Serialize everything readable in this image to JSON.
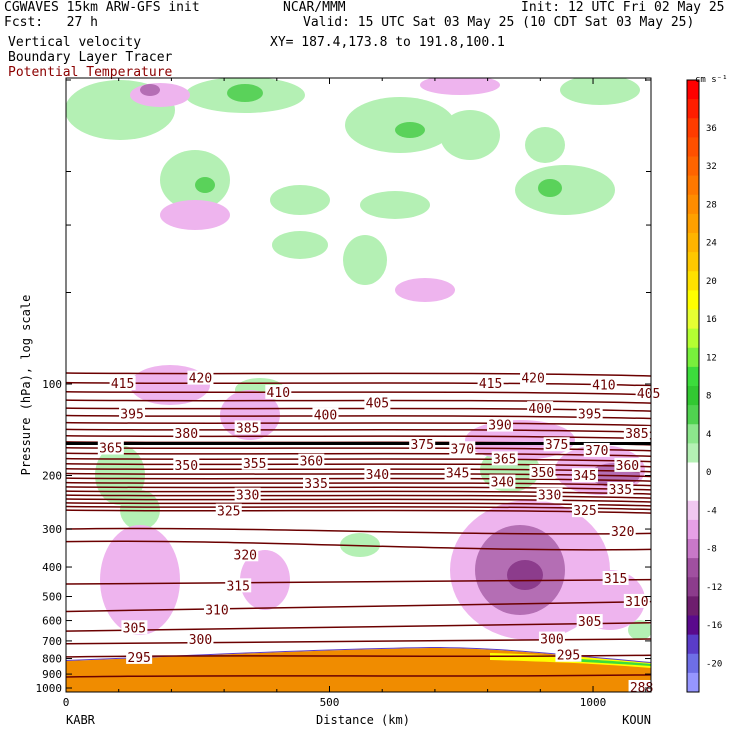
{
  "header": {
    "model": "CGWAVES 15km ARW-GFS init",
    "center": "NCAR/MMM",
    "init": "Init: 12 UTC Fri 02 May 25",
    "fcst": "Fcst:   27 h",
    "valid": "Valid: 15 UTC Sat 03 May 25 (10 CDT Sat 03 May 25)",
    "field1": "Vertical velocity",
    "field2": "Boundary Layer Tracer",
    "field3": "Potential Temperature",
    "xy": "XY= 187.4,173.8 to 191.8,100.1"
  },
  "colors": {
    "theta_line": "#6b0000",
    "bl_tracer": "#f08c00",
    "upward_light": "#b4f0b4",
    "upward_mid": "#5ad25a",
    "downward_light": "#eeb4ee",
    "downward_mid": "#b46eb4",
    "downward_dark": "#8c3c8c"
  },
  "chart_data": {
    "type": "cross-section",
    "ylabel": "Pressure (hPa), log scale",
    "xlabel": "Distance (km)",
    "y_scale": "log",
    "x_ticks": [
      "0",
      "500",
      "1000"
    ],
    "x_tick_values": [
      0,
      500,
      1000
    ],
    "xlim": [
      0,
      1110
    ],
    "y_ticks": [
      "100",
      "200",
      "300",
      "400",
      "500",
      "600",
      "700",
      "800",
      "900",
      "1000"
    ],
    "y_tick_values": [
      100,
      200,
      300,
      400,
      500,
      600,
      700,
      800,
      900,
      1000
    ],
    "ylim": [
      1050,
      10
    ],
    "endpoint_left": "KABR",
    "endpoint_right": "KOUN",
    "colorbar": {
      "units": "cm s⁻¹",
      "labels": [
        "36",
        "32",
        "28",
        "24",
        "20",
        "16",
        "12",
        "8",
        "4",
        "0",
        "-4",
        "-8",
        "-12",
        "-16",
        "-20"
      ],
      "levels": [
        40,
        38,
        36,
        34,
        32,
        30,
        28,
        26,
        24,
        22,
        20,
        18,
        16,
        14,
        12,
        10,
        8,
        6,
        4,
        2,
        0,
        -2,
        -4,
        -6,
        -8,
        -10,
        -12,
        -14,
        -16,
        -18,
        -20,
        -22
      ],
      "colors": [
        "#ff0000",
        "#ff1e00",
        "#ff3c00",
        "#ff5000",
        "#ff6400",
        "#ff7800",
        "#ff8c00",
        "#ffa000",
        "#ffb400",
        "#ffc800",
        "#ffe100",
        "#ffff00",
        "#e6ff32",
        "#b4ff32",
        "#78f03c",
        "#3cdc3c",
        "#32c832",
        "#50d250",
        "#8ce68c",
        "#b4f0b4",
        "#ffffff",
        "#ffffff",
        "#f0c8f0",
        "#e6a0e6",
        "#c878c8",
        "#a050a0",
        "#8c3c8c",
        "#6e1e6e",
        "#5a0a8c",
        "#5a3cc8",
        "#6e6ee6",
        "#9696ff"
      ]
    },
    "theta_labels": [
      {
        "t": "415",
        "x": 120,
        "p": 100
      },
      {
        "t": "420",
        "x": 285,
        "p": 96
      },
      {
        "t": "410",
        "x": 450,
        "p": 107
      },
      {
        "t": "405",
        "x": 660,
        "p": 116
      },
      {
        "t": "400",
        "x": 550,
        "p": 127
      },
      {
        "t": "395",
        "x": 140,
        "p": 126
      },
      {
        "t": "380",
        "x": 255,
        "p": 146
      },
      {
        "t": "385",
        "x": 385,
        "p": 140
      },
      {
        "t": "415",
        "x": 900,
        "p": 100
      },
      {
        "t": "420",
        "x": 990,
        "p": 96
      },
      {
        "t": "410",
        "x": 1140,
        "p": 101
      },
      {
        "t": "405",
        "x": 1235,
        "p": 108
      },
      {
        "t": "400",
        "x": 1005,
        "p": 121
      },
      {
        "t": "395",
        "x": 1110,
        "p": 126
      },
      {
        "t": "390",
        "x": 920,
        "p": 137
      },
      {
        "t": "385",
        "x": 1210,
        "p": 146
      },
      {
        "t": "365",
        "x": 95,
        "p": 163
      },
      {
        "t": "375",
        "x": 755,
        "p": 159
      },
      {
        "t": "370",
        "x": 840,
        "p": 164
      },
      {
        "t": "375",
        "x": 1040,
        "p": 159
      },
      {
        "t": "370",
        "x": 1125,
        "p": 166
      },
      {
        "t": "350",
        "x": 255,
        "p": 186
      },
      {
        "t": "355",
        "x": 400,
        "p": 183
      },
      {
        "t": "360",
        "x": 520,
        "p": 180
      },
      {
        "t": "365",
        "x": 930,
        "p": 177
      },
      {
        "t": "340",
        "x": 660,
        "p": 199
      },
      {
        "t": "345",
        "x": 830,
        "p": 197
      },
      {
        "t": "340",
        "x": 925,
        "p": 211
      },
      {
        "t": "350",
        "x": 1010,
        "p": 196
      },
      {
        "t": "345",
        "x": 1100,
        "p": 201
      },
      {
        "t": "360",
        "x": 1190,
        "p": 186
      },
      {
        "t": "330",
        "x": 385,
        "p": 233
      },
      {
        "t": "335",
        "x": 530,
        "p": 213
      },
      {
        "t": "330",
        "x": 1025,
        "p": 233
      },
      {
        "t": "325",
        "x": 1100,
        "p": 262
      },
      {
        "t": "335",
        "x": 1175,
        "p": 223
      },
      {
        "t": "325",
        "x": 345,
        "p": 263
      },
      {
        "t": "320",
        "x": 1180,
        "p": 307
      },
      {
        "t": "320",
        "x": 380,
        "p": 366
      },
      {
        "t": "315",
        "x": 365,
        "p": 463
      },
      {
        "t": "315",
        "x": 1165,
        "p": 438
      },
      {
        "t": "310",
        "x": 320,
        "p": 556
      },
      {
        "t": "310",
        "x": 1210,
        "p": 521
      },
      {
        "t": "305",
        "x": 145,
        "p": 636
      },
      {
        "t": "305",
        "x": 1110,
        "p": 607
      },
      {
        "t": "300",
        "x": 285,
        "p": 694
      },
      {
        "t": "300",
        "x": 1030,
        "p": 693
      },
      {
        "t": "295",
        "x": 155,
        "p": 796
      },
      {
        "t": "295",
        "x": 1065,
        "p": 783
      },
      {
        "t": "288",
        "x": 1220,
        "p": 1000
      }
    ]
  }
}
